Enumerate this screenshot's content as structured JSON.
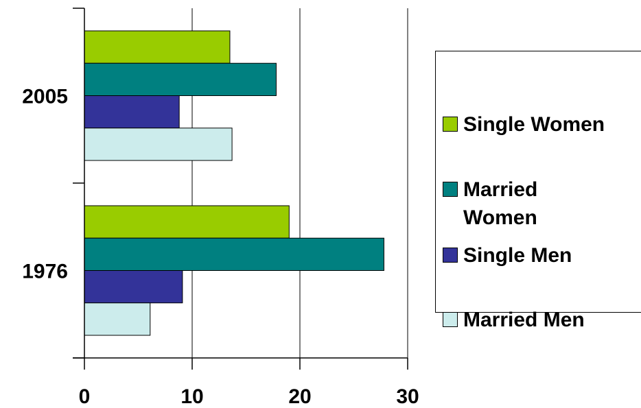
{
  "chart_data": {
    "type": "bar",
    "orientation": "horizontal",
    "categories": [
      "2005",
      "1976"
    ],
    "series": [
      {
        "name": "Single Women",
        "color": "#99CC00",
        "values": [
          13.5,
          19
        ]
      },
      {
        "name": "Married Women",
        "color": "#008080",
        "values": [
          17.8,
          27.8
        ]
      },
      {
        "name": "Single Men",
        "color": "#333399",
        "values": [
          8.8,
          9.1
        ]
      },
      {
        "name": "Married Men",
        "color": "#CCECEC",
        "values": [
          13.7,
          6.1
        ]
      }
    ],
    "x_ticks": [
      "0",
      "10",
      "20",
      "30"
    ],
    "xlim": [
      0,
      30
    ],
    "grid": true,
    "legend_position": "right",
    "title": "",
    "xlabel": "",
    "ylabel": ""
  }
}
